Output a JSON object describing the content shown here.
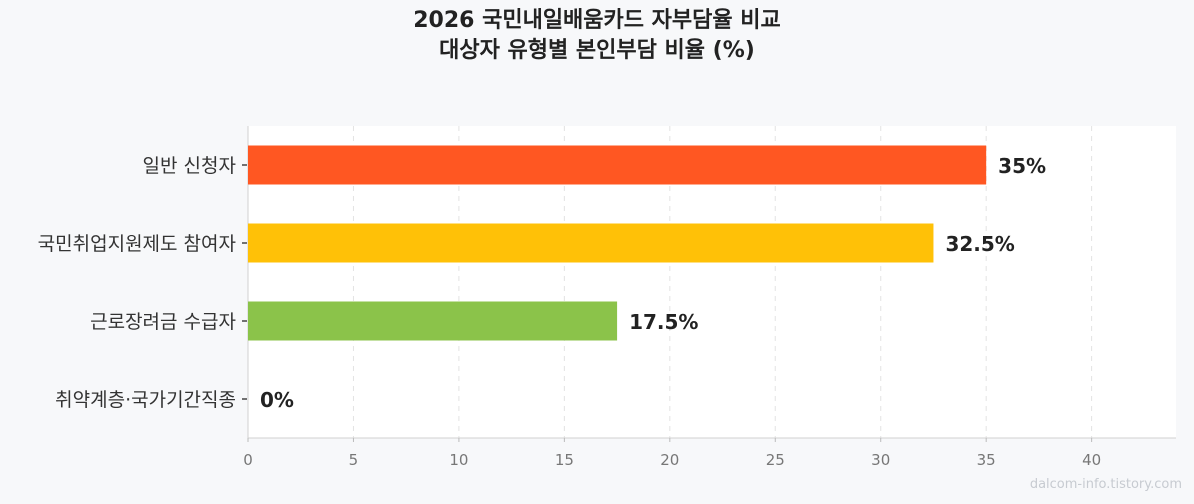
{
  "chart_data": {
    "type": "bar",
    "orientation": "horizontal",
    "title": "2026 국민내일배움카드 자부담율 비교",
    "subtitle": "대상자 유형별 본인부담 비율 (%)",
    "categories": [
      "일반 신청자",
      "국민취업지원제도 참여자",
      "근로장려금 수급자",
      "취약계층·국가기간직종"
    ],
    "values": [
      35,
      32.5,
      17.5,
      0
    ],
    "data_labels": [
      "35%",
      "32.5%",
      "17.5%",
      "0%"
    ],
    "bar_colors": [
      "#ff5722",
      "#ffc107",
      "#8bc34a",
      "#9e9e9e"
    ],
    "xlim": [
      0,
      44
    ],
    "xticks": [
      0,
      5,
      10,
      15,
      20,
      25,
      30,
      35,
      40
    ],
    "grid": true,
    "legend": "none"
  },
  "watermark": "dalcom-info.tistory.com"
}
